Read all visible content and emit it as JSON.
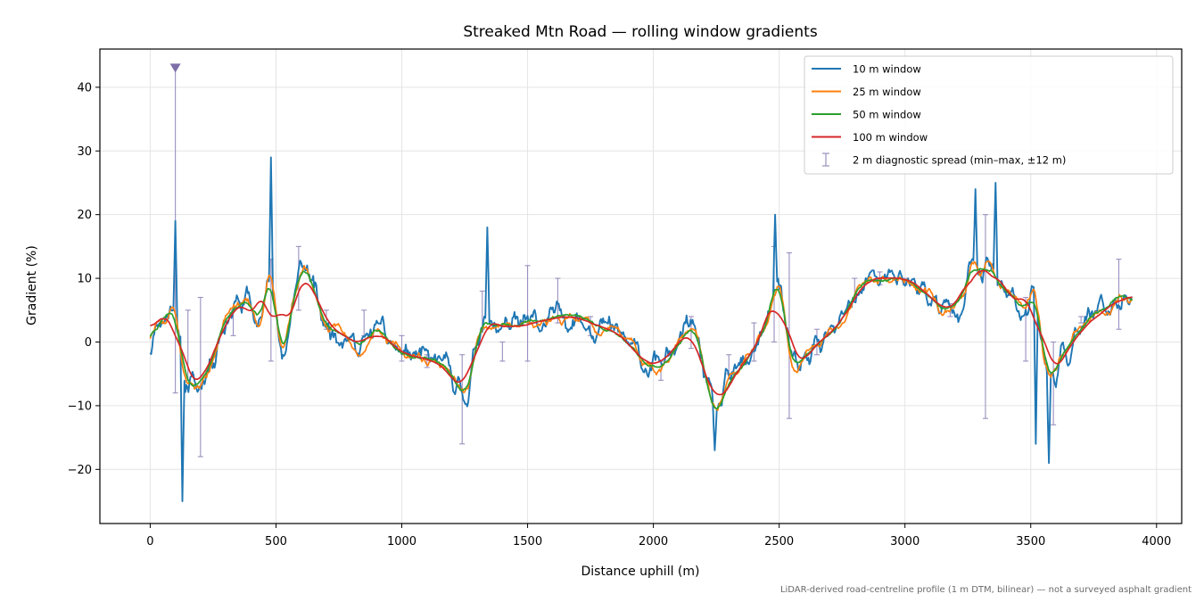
{
  "chart_data": {
    "type": "line",
    "title": "Streaked Mtn Road — rolling window gradients",
    "xlabel": "Distance uphill (m)",
    "ylabel": "Gradient (%)",
    "xlim": [
      -200,
      4100
    ],
    "ylim": [
      -28.5,
      46
    ],
    "xticks": [
      0,
      500,
      1000,
      1500,
      2000,
      2500,
      3000,
      3500,
      4000
    ],
    "yticks": [
      -20,
      -10,
      0,
      10,
      20,
      30,
      40
    ],
    "grid": true,
    "legend_position": "upper right",
    "footnote": "LiDAR-derived road-centreline profile (1 m DTM, bilinear) — not a surveyed asphalt gradient",
    "anchors": {
      "x": [
        0,
        15,
        40,
        60,
        80,
        95,
        110,
        125,
        140,
        160,
        180,
        200,
        220,
        250,
        280,
        310,
        340,
        370,
        400,
        420,
        440,
        460,
        480,
        500,
        520,
        540,
        560,
        580,
        600,
        620,
        640,
        660,
        680,
        700,
        750,
        800,
        850,
        900,
        950,
        1000,
        1050,
        1100,
        1150,
        1200,
        1230,
        1250,
        1270,
        1290,
        1320,
        1350,
        1400,
        1450,
        1500,
        1550,
        1600,
        1650,
        1700,
        1750,
        1800,
        1850,
        1900,
        1950,
        2000,
        2050,
        2100,
        2150,
        2180,
        2200,
        2230,
        2250,
        2280,
        2300,
        2350,
        2400,
        2430,
        2450,
        2470,
        2480,
        2500,
        2530,
        2560,
        2600,
        2650,
        2700,
        2750,
        2800,
        2850,
        2900,
        2950,
        3000,
        3050,
        3100,
        3150,
        3200,
        3250,
        3270,
        3290,
        3310,
        3330,
        3350,
        3370,
        3390,
        3410,
        3430,
        3450,
        3470,
        3490,
        3510,
        3530,
        3550,
        3570,
        3590,
        3620,
        3650,
        3700,
        3750,
        3800,
        3850,
        3900
      ],
      "y": [
        -3,
        3,
        4,
        3,
        5,
        8,
        2,
        -3,
        -8,
        -5,
        -8,
        -7,
        -4,
        -3,
        2,
        4,
        6,
        6,
        7,
        3,
        1,
        8,
        14,
        5,
        -6,
        0,
        5,
        9,
        12,
        12,
        10,
        7,
        4,
        2,
        2,
        0,
        -1,
        3,
        0,
        -2,
        -2,
        -3,
        -3,
        -5,
        -8,
        -9,
        -7,
        -2,
        5,
        2,
        3,
        2,
        3,
        3,
        4,
        4,
        4,
        3,
        2,
        2,
        0,
        -3,
        -4,
        -3,
        0,
        3,
        0,
        -4,
        -10,
        -12,
        -8,
        -6,
        -4,
        -1,
        1,
        2,
        5,
        9,
        12,
        0,
        -5,
        -3,
        0,
        1,
        3,
        7,
        10,
        10,
        10,
        10,
        9,
        7,
        5,
        5,
        9,
        14,
        11,
        8,
        15,
        9,
        11,
        8,
        8,
        6,
        7,
        3,
        7,
        10,
        5,
        -2,
        -7,
        -5,
        -3,
        -1,
        2,
        4,
        5,
        7,
        7
      ]
    },
    "series": [
      {
        "name": "10 m window",
        "color": "#1f77b4",
        "noise": 2.6,
        "smooth": 2,
        "seed": 11
      },
      {
        "name": "25 m window",
        "color": "#ff7f0e",
        "noise": 1.7,
        "smooth": 4,
        "seed": 23
      },
      {
        "name": "50 m window",
        "color": "#2ca02c",
        "noise": 1.0,
        "smooth": 7,
        "seed": 37
      },
      {
        "name": "100 m window",
        "color": "#d62728",
        "noise": 0.35,
        "smooth": 14,
        "seed": 51
      }
    ],
    "spikes_10m": [
      {
        "x": 100,
        "y": 19
      },
      {
        "x": 128,
        "y": -25
      },
      {
        "x": 480,
        "y": 29
      },
      {
        "x": 1338,
        "y": 18
      },
      {
        "x": 2245,
        "y": -17
      },
      {
        "x": 2485,
        "y": 20
      },
      {
        "x": 3280,
        "y": 24
      },
      {
        "x": 3360,
        "y": 25
      },
      {
        "x": 3570,
        "y": -19
      },
      {
        "x": 3520,
        "y": -16
      },
      {
        "x": 3010,
        "y": 10
      }
    ],
    "spread_series": {
      "name": "2 m diagnostic spread (min–max, ±12 m)",
      "color": "#9a8fbf",
      "points": [
        {
          "x": 100,
          "low": -8,
          "high": 43
        },
        {
          "x": 150,
          "low": -6,
          "high": 5
        },
        {
          "x": 200,
          "low": -18,
          "high": 7
        },
        {
          "x": 330,
          "low": 1,
          "high": 5
        },
        {
          "x": 480,
          "low": -3,
          "high": 13
        },
        {
          "x": 590,
          "low": 5,
          "high": 15
        },
        {
          "x": 700,
          "low": 2,
          "high": 5
        },
        {
          "x": 850,
          "low": 1,
          "high": 5
        },
        {
          "x": 1000,
          "low": -3,
          "high": 1
        },
        {
          "x": 1100,
          "low": -4,
          "high": -2
        },
        {
          "x": 1240,
          "low": -16,
          "high": -2
        },
        {
          "x": 1320,
          "low": 2,
          "high": 8
        },
        {
          "x": 1400,
          "low": -3,
          "high": 0
        },
        {
          "x": 1500,
          "low": -3,
          "high": 12
        },
        {
          "x": 1620,
          "low": 3,
          "high": 10
        },
        {
          "x": 1750,
          "low": 1,
          "high": 4
        },
        {
          "x": 2030,
          "low": -6,
          "high": -3
        },
        {
          "x": 2150,
          "low": -1,
          "high": 4
        },
        {
          "x": 2300,
          "low": -5,
          "high": -2
        },
        {
          "x": 2400,
          "low": -3,
          "high": 3
        },
        {
          "x": 2480,
          "low": 0,
          "high": 15
        },
        {
          "x": 2540,
          "low": -12,
          "high": 14
        },
        {
          "x": 2650,
          "low": -2,
          "high": 2
        },
        {
          "x": 2800,
          "low": 7,
          "high": 10
        },
        {
          "x": 2900,
          "low": 9,
          "high": 11
        },
        {
          "x": 3000,
          "low": 9,
          "high": 10
        },
        {
          "x": 3180,
          "low": 4,
          "high": 6
        },
        {
          "x": 3320,
          "low": -12,
          "high": 20
        },
        {
          "x": 3480,
          "low": -3,
          "high": 7
        },
        {
          "x": 3590,
          "low": -13,
          "high": 0
        },
        {
          "x": 3700,
          "low": 3,
          "high": 4
        },
        {
          "x": 3850,
          "low": 2,
          "high": 13
        }
      ],
      "clipped_marker": {
        "x": 100,
        "y": 43
      }
    }
  }
}
